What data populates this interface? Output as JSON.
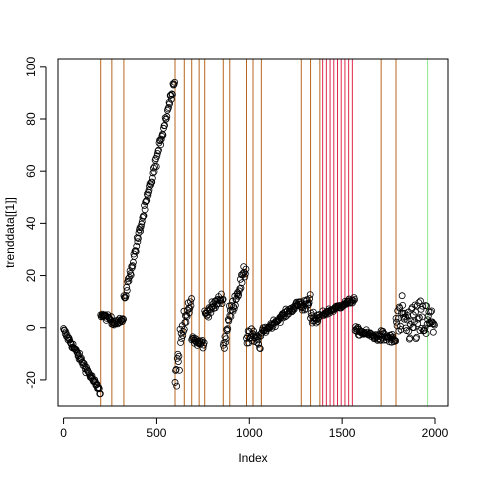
{
  "chart_data": {
    "type": "scatter",
    "xlabel": "Index",
    "ylabel": "trenddata[[1]]",
    "xlim": [
      -30,
      2070
    ],
    "ylim": [
      -30,
      103
    ],
    "x_ticks": [
      0,
      500,
      1000,
      1500,
      2000
    ],
    "y_ticks": [
      -20,
      0,
      20,
      40,
      60,
      80,
      100
    ],
    "point_style": "open-circle",
    "point_color": "#000000",
    "segments": [
      {
        "x": [
          0,
          200
        ],
        "y": [
          -1,
          -25
        ],
        "noise": 1.0
      },
      {
        "x": [
          200,
          260
        ],
        "y": [
          5,
          3
        ],
        "noise": 0.8
      },
      {
        "x": [
          260,
          325
        ],
        "y": [
          2,
          3
        ],
        "noise": 0.8
      },
      {
        "x": [
          325,
          600
        ],
        "y": [
          10,
          96
        ],
        "noise": 1.5
      },
      {
        "x": [
          600,
          650
        ],
        "y": [
          -20,
          3
        ],
        "noise": 6
      },
      {
        "x": [
          650,
          690
        ],
        "y": [
          3,
          9
        ],
        "noise": 2
      },
      {
        "x": [
          690,
          730
        ],
        "y": [
          -4,
          -6
        ],
        "noise": 1.5
      },
      {
        "x": [
          730,
          760
        ],
        "y": [
          -6,
          -6
        ],
        "noise": 1.5
      },
      {
        "x": [
          760,
          860
        ],
        "y": [
          5,
          12
        ],
        "noise": 1.5
      },
      {
        "x": [
          860,
          895
        ],
        "y": [
          -8,
          5
        ],
        "noise": 3
      },
      {
        "x": [
          895,
          985
        ],
        "y": [
          5,
          23
        ],
        "noise": 2
      },
      {
        "x": [
          985,
          1020
        ],
        "y": [
          -3,
          -3
        ],
        "noise": 3
      },
      {
        "x": [
          1020,
          1065
        ],
        "y": [
          -4,
          -6
        ],
        "noise": 2
      },
      {
        "x": [
          1065,
          1280
        ],
        "y": [
          -2,
          10
        ],
        "noise": 1
      },
      {
        "x": [
          1280,
          1330
        ],
        "y": [
          7,
          12
        ],
        "noise": 2
      },
      {
        "x": [
          1330,
          1380
        ],
        "y": [
          3,
          3
        ],
        "noise": 2
      },
      {
        "x": [
          1390,
          1570
        ],
        "y": [
          5,
          11
        ],
        "noise": 0.8
      },
      {
        "x": [
          1570,
          1710
        ],
        "y": [
          -1,
          -4
        ],
        "noise": 1
      },
      {
        "x": [
          1710,
          1790
        ],
        "y": [
          -3,
          -5
        ],
        "noise": 1.5
      },
      {
        "x": [
          1790,
          2000
        ],
        "y": [
          2,
          2
        ],
        "noise": 6
      }
    ],
    "changepoints_brown": [
      200,
      260,
      325,
      600,
      650,
      690,
      730,
      760,
      860,
      895,
      985,
      1020,
      1065,
      1280,
      1330,
      1380,
      1710,
      1790
    ],
    "changepoints_red": [
      1395,
      1415,
      1435,
      1455,
      1475,
      1495,
      1515,
      1535,
      1555
    ],
    "changepoints_green": [
      1960
    ],
    "colors": {
      "brown": "#b8661f",
      "red": "#e0284d",
      "green": "#8fe88f",
      "points": "#000000"
    }
  }
}
